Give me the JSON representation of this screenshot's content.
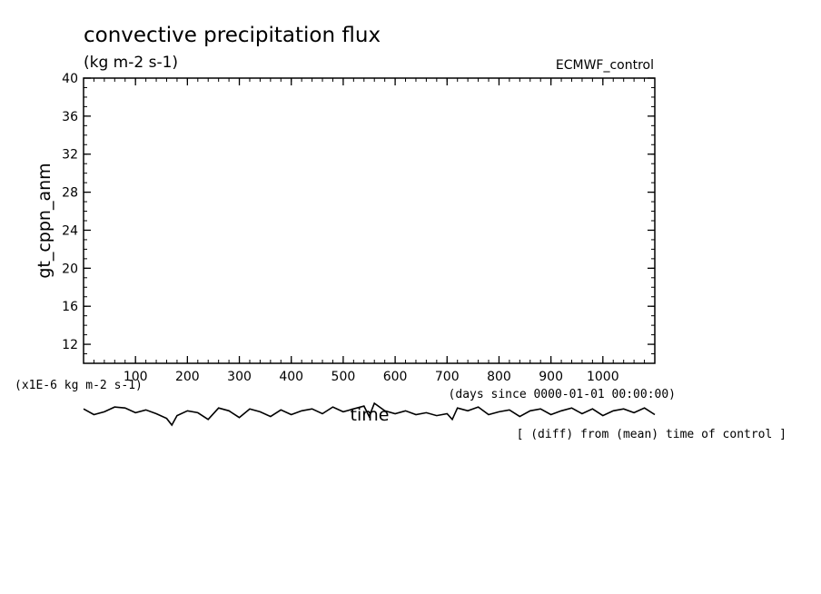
{
  "chart_data": {
    "type": "line",
    "title": "convective precipitation flux",
    "subtitle": "(kg m-2 s-1)",
    "experiment_label": "ECMWF_control",
    "ylabel": "gt_cppn_anm",
    "y_unit_label": "(x1E-6 kg m-2 s-1)",
    "xlabel": "time",
    "x_unit_label": "(days since 0000-01-01 00:00:00)",
    "annotation": "[ (diff) from (mean) time of control ]",
    "xlim": [
      0,
      1100
    ],
    "ylim": [
      10,
      40
    ],
    "x_ticks": [
      100,
      200,
      300,
      400,
      500,
      600,
      700,
      800,
      900,
      1000
    ],
    "y_ticks": [
      12,
      16,
      20,
      24,
      28,
      32,
      36,
      40
    ],
    "grid": false,
    "legend": "none",
    "colors": {
      "line": "#000000",
      "axes": "#000000",
      "background": "#ffffff"
    },
    "series": [
      {
        "x": [
          0,
          20,
          40,
          60,
          80,
          100,
          120,
          140,
          160,
          170,
          180,
          200,
          220,
          240,
          260,
          280,
          300,
          320,
          340,
          360,
          380,
          400,
          420,
          440,
          460,
          480,
          500,
          520,
          540,
          550,
          560,
          580,
          600,
          620,
          640,
          660,
          680,
          700,
          710,
          720,
          740,
          760,
          780,
          800,
          820,
          840,
          860,
          880,
          900,
          920,
          940,
          960,
          980,
          1000,
          1020,
          1040,
          1060,
          1080,
          1100
        ],
        "values": [
          5.2,
          4.6,
          4.9,
          5.4,
          5.3,
          4.8,
          5.1,
          4.7,
          4.2,
          3.5,
          4.5,
          5.0,
          4.8,
          4.1,
          5.3,
          5.0,
          4.3,
          5.2,
          4.9,
          4.4,
          5.1,
          4.6,
          5.0,
          5.2,
          4.7,
          5.4,
          4.9,
          5.2,
          5.5,
          4.4,
          5.8,
          5.0,
          4.7,
          5.0,
          4.6,
          4.8,
          4.5,
          4.7,
          4.1,
          5.3,
          5.0,
          5.4,
          4.6,
          4.9,
          5.1,
          4.4,
          5.0,
          5.2,
          4.6,
          5.0,
          5.3,
          4.7,
          5.2,
          4.5,
          5.0,
          5.2,
          4.8,
          5.3,
          4.6
        ]
      }
    ]
  }
}
